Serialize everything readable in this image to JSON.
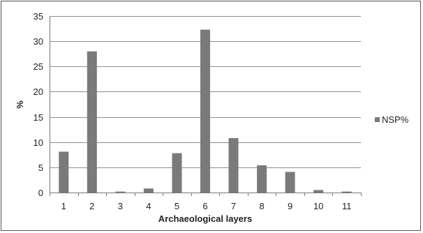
{
  "chart_data": {
    "type": "bar",
    "title": "",
    "xlabel": "Archaeological layers",
    "ylabel": "%",
    "categories": [
      "1",
      "2",
      "3",
      "4",
      "5",
      "6",
      "7",
      "8",
      "9",
      "10",
      "11"
    ],
    "series": [
      {
        "name": "NSP%",
        "values": [
          8.1,
          28.0,
          0.2,
          0.8,
          7.8,
          32.3,
          10.8,
          5.4,
          4.1,
          0.5,
          0.2
        ],
        "color": "#7a7a7a"
      }
    ],
    "ylim": [
      0,
      35
    ],
    "yticks": [
      0,
      5,
      10,
      15,
      20,
      25,
      30,
      35
    ],
    "grid": true,
    "legend_position": "right"
  }
}
